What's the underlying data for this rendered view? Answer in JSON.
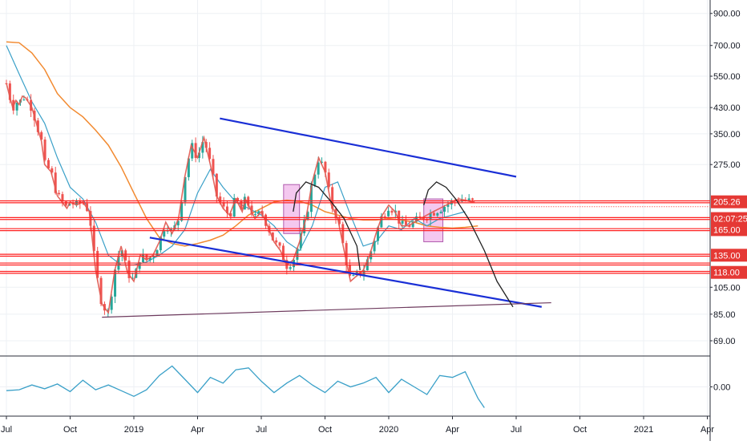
{
  "chart_data": {
    "type": "line",
    "scale": "log",
    "x_labels": [
      "Jul",
      "Oct",
      "2019",
      "Apr",
      "Jul",
      "Oct",
      "2020",
      "Apr",
      "Jul",
      "Oct",
      "2021",
      "Apr"
    ],
    "y_ticks": [
      900,
      700,
      550,
      430,
      350,
      275,
      105,
      85,
      69
    ],
    "y_tick_labels": [
      "900.00",
      "700.00",
      "550.00",
      "430.00",
      "350.00",
      "275.00",
      "105.00",
      "85.00",
      "69.00"
    ],
    "ylim": [
      62,
      1000
    ],
    "price_series": {
      "x": [
        0,
        0.05,
        0.1,
        0.15,
        0.2,
        0.25,
        0.3,
        0.4,
        0.55,
        0.6,
        0.7,
        0.8,
        0.95,
        1.0,
        1.1,
        1.2,
        1.3,
        1.4,
        1.5,
        1.6,
        1.7,
        1.8,
        1.9,
        2.0,
        2.1,
        2.2,
        2.3,
        2.4,
        2.5,
        2.6,
        2.7,
        2.8,
        2.9,
        3.0,
        3.1,
        3.2,
        3.3,
        3.4,
        3.5,
        3.6,
        3.7,
        3.75,
        3.8,
        3.9,
        4.0,
        4.1,
        4.2,
        4.3,
        4.4,
        4.5,
        4.6,
        4.7,
        4.8,
        4.9,
        5.0,
        5.1,
        5.2,
        5.3,
        5.4,
        5.5,
        5.6,
        5.7,
        5.8,
        5.9,
        6.0,
        6.1,
        6.2,
        6.3,
        6.35,
        6.4,
        6.5,
        6.6,
        6.7,
        6.8,
        6.9,
        7.0,
        7.1,
        7.2,
        7.3,
        7.35
      ],
      "y": [
        520,
        470,
        430,
        455,
        440,
        470,
        465,
        430,
        330,
        275,
        260,
        215,
        195,
        205,
        200,
        205,
        190,
        120,
        92,
        86,
        120,
        145,
        118,
        110,
        135,
        130,
        135,
        150,
        175,
        160,
        180,
        250,
        320,
        290,
        340,
        275,
        215,
        195,
        185,
        210,
        190,
        210,
        200,
        180,
        190,
        170,
        150,
        140,
        125,
        130,
        150,
        180,
        240,
        290,
        260,
        200,
        180,
        140,
        110,
        115,
        120,
        135,
        160,
        185,
        200,
        190,
        170,
        170,
        172,
        175,
        180,
        185,
        190,
        195,
        200,
        205,
        210,
        208,
        205,
        205
      ]
    },
    "fast_ma": {
      "x": [
        0,
        0.2,
        0.4,
        0.6,
        0.8,
        1.0,
        1.2,
        1.4,
        1.6,
        1.8,
        2.0,
        2.2,
        2.4,
        2.6,
        2.8,
        3.0,
        3.2,
        3.4,
        3.6,
        3.8,
        4.0,
        4.2,
        4.4,
        4.6,
        4.8,
        5.0,
        5.2,
        5.4,
        5.6,
        5.8,
        6.0,
        6.2,
        6.4,
        6.6,
        6.8,
        7.0,
        7.2
      ],
      "y": [
        700,
        560,
        450,
        380,
        290,
        230,
        210,
        175,
        135,
        125,
        125,
        128,
        135,
        145,
        165,
        220,
        265,
        230,
        205,
        195,
        185,
        170,
        150,
        140,
        170,
        230,
        240,
        185,
        145,
        150,
        170,
        165,
        180,
        170,
        180,
        185,
        190
      ]
    },
    "slow_ma": {
      "x": [
        0,
        0.2,
        0.4,
        0.6,
        0.8,
        1.0,
        1.2,
        1.4,
        1.6,
        1.8,
        2.0,
        2.2,
        2.4,
        2.6,
        2.8,
        3.0,
        3.2,
        3.4,
        3.6,
        3.8,
        4.0,
        4.2,
        4.4,
        4.6,
        4.8,
        5.0,
        5.2,
        5.4,
        5.6,
        5.8,
        6.0,
        6.2,
        6.4,
        6.6,
        6.8,
        7.0,
        7.2,
        7.4
      ],
      "y": [
        720,
        715,
        660,
        580,
        480,
        430,
        400,
        360,
        320,
        270,
        220,
        180,
        155,
        148,
        145,
        148,
        152,
        158,
        170,
        185,
        195,
        205,
        208,
        206,
        200,
        190,
        185,
        180,
        178,
        178,
        180,
        178,
        175,
        170,
        168,
        167,
        168,
        170
      ]
    },
    "horizontal_levels": [
      {
        "value": 205.26,
        "label": "205.26"
      },
      {
        "value": 180,
        "label": "02:07:25"
      },
      {
        "value": 165,
        "label": "165.00"
      },
      {
        "value": 135,
        "label": "135.00"
      },
      {
        "value": 126,
        "label": ""
      },
      {
        "value": 118,
        "label": "118.00"
      }
    ],
    "channel_lines": [
      {
        "x": [
          3.35,
          8.0
        ],
        "y": [
          395,
          250
        ]
      },
      {
        "x": [
          2.25,
          8.4
        ],
        "y": [
          155,
          90
        ]
      },
      {
        "x": [
          1.5,
          8.55
        ],
        "y": [
          83,
          93
        ]
      }
    ],
    "boxes": [
      {
        "x": [
          4.35,
          4.6
        ],
        "y": [
          160,
          235
        ]
      },
      {
        "x": [
          6.55,
          6.85
        ],
        "y": [
          150,
          210
        ]
      }
    ],
    "arcs": [
      {
        "x": [
          4.5,
          4.55,
          4.7,
          4.9,
          5.1,
          5.3,
          5.5,
          5.55
        ],
        "y": [
          190,
          220,
          240,
          230,
          205,
          180,
          145,
          120
        ]
      },
      {
        "x": [
          6.55,
          6.62,
          6.75,
          6.9,
          7.05,
          7.25,
          7.5,
          7.7,
          7.95
        ],
        "y": [
          200,
          225,
          240,
          230,
          210,
          180,
          140,
          110,
          90
        ]
      }
    ],
    "oscillator": {
      "x": [
        0,
        0.2,
        0.4,
        0.6,
        0.8,
        1.0,
        1.2,
        1.4,
        1.6,
        1.8,
        2.0,
        2.2,
        2.4,
        2.6,
        2.8,
        3.0,
        3.2,
        3.4,
        3.6,
        3.8,
        4.0,
        4.2,
        4.4,
        4.6,
        4.8,
        5.0,
        5.2,
        5.4,
        5.6,
        5.8,
        6.0,
        6.2,
        6.4,
        6.6,
        6.8,
        7.0,
        7.2,
        7.4,
        7.5
      ],
      "y": [
        -0.2,
        -0.15,
        0.1,
        -0.1,
        0.15,
        -0.25,
        0.35,
        -0.15,
        0.1,
        -0.2,
        -0.5,
        -0.15,
        0.6,
        1.1,
        0.4,
        -0.3,
        0.5,
        0.2,
        0.9,
        1.0,
        0.3,
        -0.3,
        0.2,
        0.6,
        0.1,
        -0.3,
        0.3,
        0.0,
        0.2,
        0.5,
        -0.3,
        0.4,
        0.0,
        -0.4,
        0.6,
        0.5,
        0.8,
        -0.6,
        -1.1
      ],
      "ylim": [
        -1.5,
        1.5
      ],
      "tick_label": "0.00"
    },
    "colors": {
      "price_up": "#26a69a",
      "price_down": "#ef5350",
      "price_line": "#e0584f",
      "fast_ma": "#3aa0c8",
      "slow_ma": "#f28a30",
      "levels": "#ff1f1f",
      "channel": "#1a2fd6",
      "support": "#6e3b5e",
      "box_fill": "#f0b6ea",
      "box_stroke": "#b05cae",
      "arc": "#222222",
      "oscillator": "#3aa0c8",
      "price_tag_bg": "#e53935"
    }
  }
}
